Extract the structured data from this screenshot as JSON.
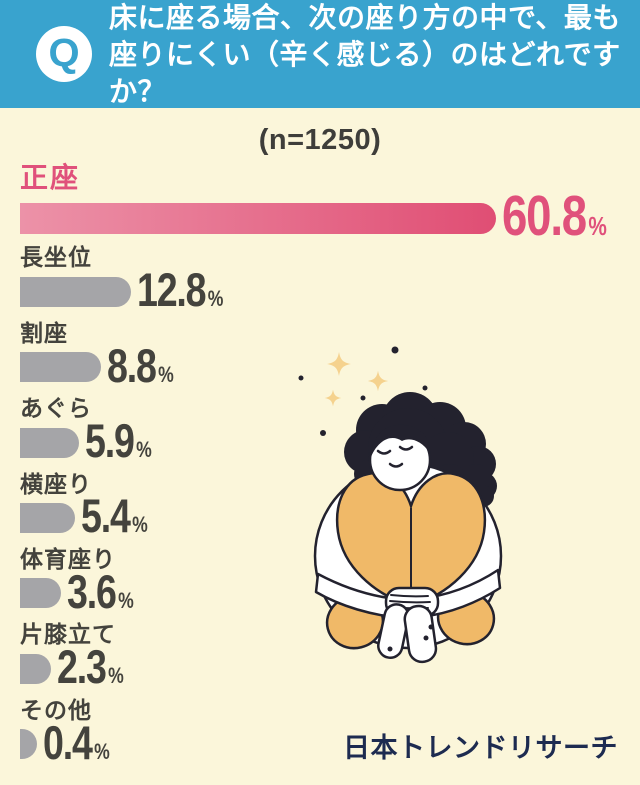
{
  "header": {
    "q_badge": "Q",
    "title_lines": [
      "床に座る場合、次の座り方の中で、最も",
      "座りにくい（辛く感じる）のはどれですか？"
    ]
  },
  "chart_data": {
    "type": "bar",
    "orientation": "horizontal",
    "title": "床に座る場合、次の座り方の中で、最も座りにくい（辛く感じる）のはどれですか？",
    "n_label": "(n=1250)",
    "n": 1250,
    "unit": "%",
    "categories": [
      "正座",
      "長坐位",
      "割座",
      "あぐら",
      "横座り",
      "体育座り",
      "片膝立て",
      "その他"
    ],
    "values": [
      60.8,
      12.8,
      8.8,
      5.9,
      5.4,
      3.6,
      2.3,
      0.4
    ],
    "highlight_index": 0,
    "xlim": [
      0,
      65
    ],
    "grid": false,
    "legend": false,
    "value_label_position": "end"
  },
  "footer": {
    "brand": "日本トレンドリサーチ"
  },
  "illustration": {
    "name": "woman-hugging-knees"
  },
  "colors": {
    "header_blue": "#39A3CE",
    "background_cream": "#FBF6DA",
    "highlight_pink": "#E0517B",
    "highlight_bar_gradient_start": "#EC92A8",
    "highlight_bar_gradient_end": "#E04E74",
    "bar_gray": "#A5A5A8",
    "text_dark": "#44433D",
    "brand_navy": "#1D2B50",
    "illustration_orange": "#F0B968",
    "sparkle_gold": "#F5D28E",
    "outline_dark": "#23222E"
  }
}
